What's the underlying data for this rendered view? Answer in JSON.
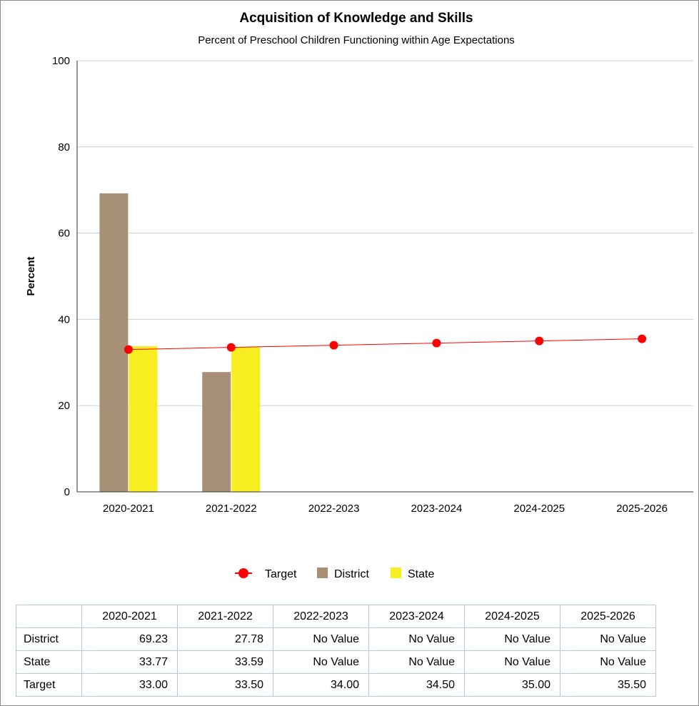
{
  "chart_data": {
    "type": "bar",
    "title": "Acquisition of Knowledge and Skills",
    "subtitle": "Percent of Preschool Children Functioning within Age Expectations",
    "ylabel": "Percent",
    "xlabel": "",
    "ylim": [
      0,
      100
    ],
    "yticks": [
      0,
      20,
      40,
      60,
      80,
      100
    ],
    "grid": true,
    "legend_position": "bottom",
    "categories": [
      "2020-2021",
      "2021-2022",
      "2022-2023",
      "2023-2024",
      "2024-2025",
      "2025-2026"
    ],
    "series": [
      {
        "name": "District",
        "type": "bar",
        "color": "#a89077",
        "values": [
          69.23,
          27.78,
          null,
          null,
          null,
          null
        ]
      },
      {
        "name": "State",
        "type": "bar",
        "color": "#f7ee22",
        "values": [
          33.77,
          33.59,
          null,
          null,
          null,
          null
        ]
      },
      {
        "name": "Target",
        "type": "line",
        "color": "#ff0000",
        "values": [
          33.0,
          33.5,
          34.0,
          34.5,
          35.0,
          35.5
        ]
      }
    ],
    "legend_order": [
      "Target",
      "District",
      "State"
    ]
  },
  "table": {
    "headers": [
      "2020-2021",
      "2021-2022",
      "2022-2023",
      "2023-2024",
      "2024-2025",
      "2025-2026"
    ],
    "rows": [
      {
        "label": "District",
        "cells": [
          "69.23",
          "27.78",
          "No Value",
          "No Value",
          "No Value",
          "No Value"
        ]
      },
      {
        "label": "State",
        "cells": [
          "33.77",
          "33.59",
          "No Value",
          "No Value",
          "No Value",
          "No Value"
        ]
      },
      {
        "label": "Target",
        "cells": [
          "33.00",
          "33.50",
          "34.00",
          "34.50",
          "35.00",
          "35.50"
        ]
      }
    ]
  }
}
